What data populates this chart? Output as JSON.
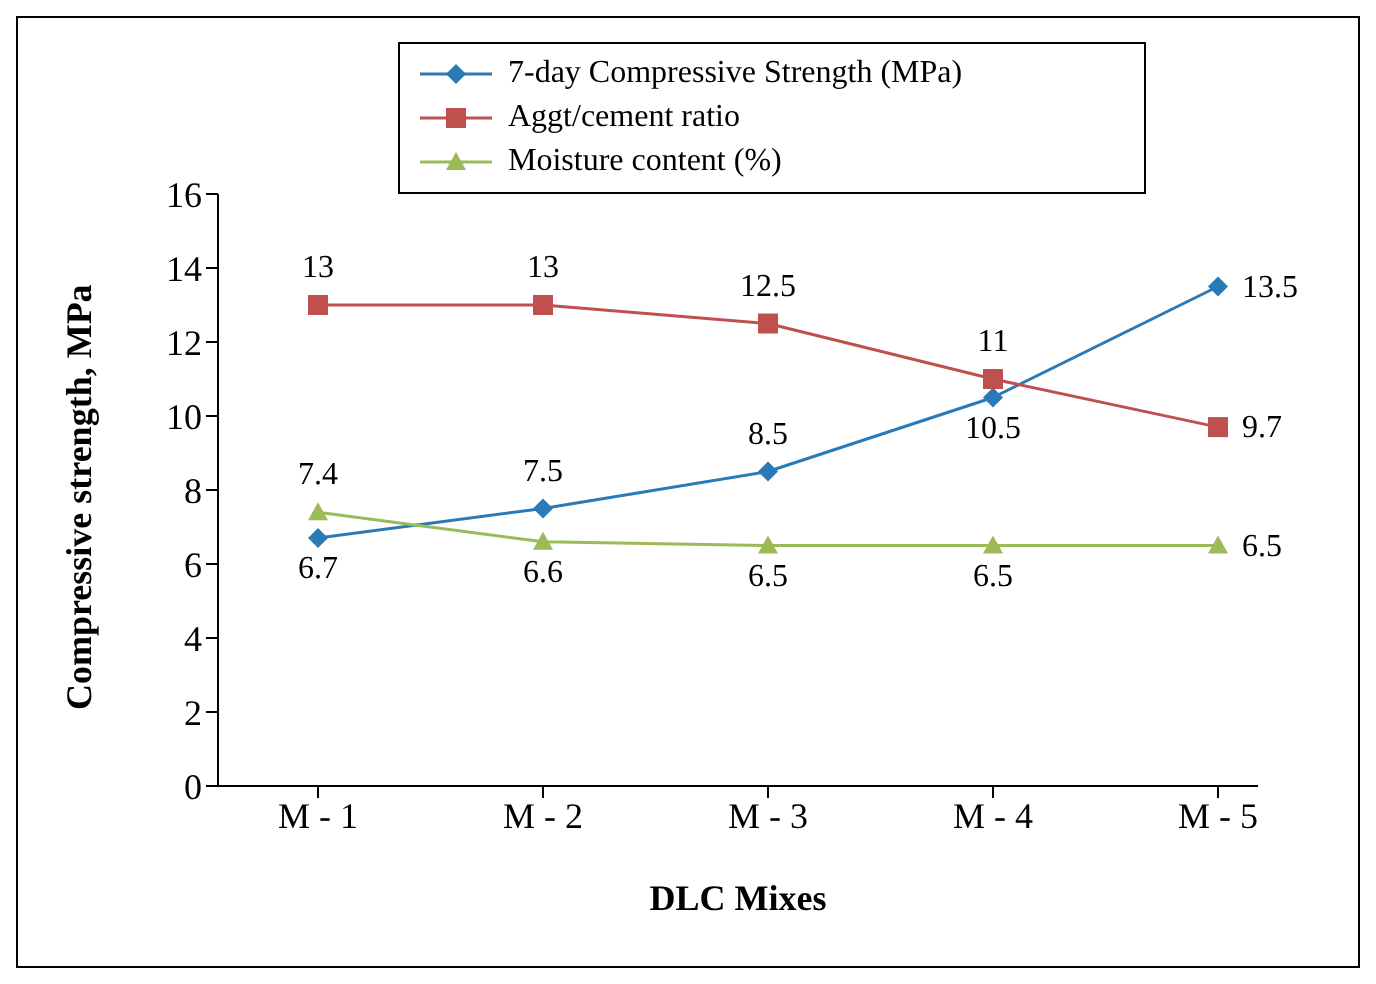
{
  "chart_data": {
    "type": "line",
    "xlabel": "DLC Mixes",
    "ylabel": "Compressive strength, MPa",
    "categories": [
      "M - 1",
      "M - 2",
      "M - 3",
      "M - 4",
      "M - 5"
    ],
    "series": [
      {
        "name": "7-day Compressive Strength (MPa)",
        "color": "#2a7ab8",
        "marker": "diamond",
        "values": [
          6.7,
          7.5,
          8.5,
          10.5,
          13.5
        ]
      },
      {
        "name": "Aggt/cement ratio",
        "color": "#c0504d",
        "marker": "square",
        "values": [
          13,
          13,
          12.5,
          11,
          9.7
        ]
      },
      {
        "name": "Moisture content (%)",
        "color": "#9bbb59",
        "marker": "triangle",
        "values": [
          7.4,
          6.6,
          6.5,
          6.5,
          6.5
        ]
      }
    ],
    "ylim": [
      0,
      16
    ],
    "yticks": [
      0,
      2,
      4,
      6,
      8,
      10,
      12,
      14,
      16
    ],
    "data_labels": true,
    "legend": "top",
    "grid": false
  }
}
